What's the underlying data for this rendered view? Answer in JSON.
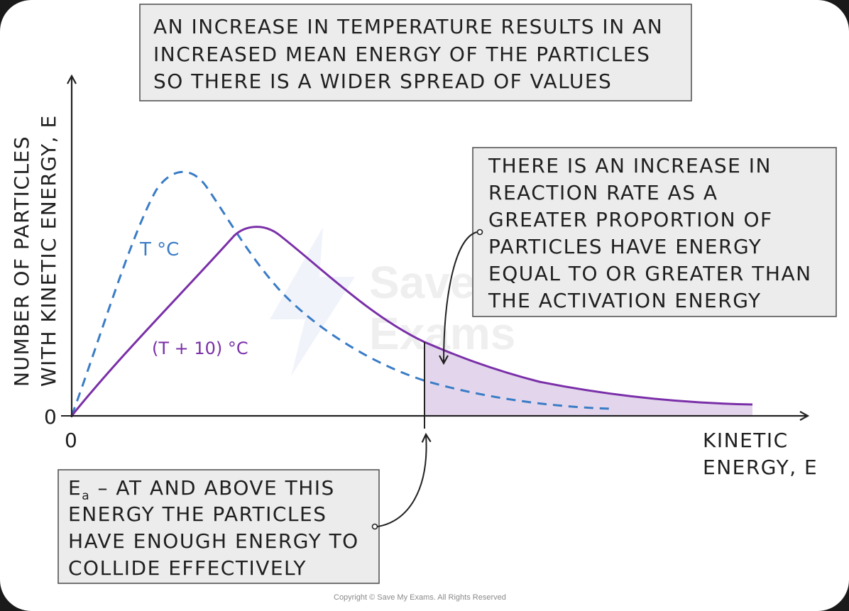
{
  "colors": {
    "hot_curve": "#7a2fa8",
    "cold_curve": "#3a7cc6",
    "shade": "#d9c8e6",
    "box_fill": "#ececec",
    "box_border": "#555555"
  },
  "top_note": {
    "line1": "AN INCREASE IN TEMPERATURE RESULTS IN AN",
    "line2": "INCREASED MEAN ENERGY OF THE PARTICLES",
    "line3": "SO THERE IS A WIDER SPREAD OF VALUES"
  },
  "right_note": {
    "line1": "THERE IS AN INCREASE IN",
    "line2": "REACTION RATE AS A",
    "line3": "GREATER PROPORTION OF",
    "line4": "PARTICLES HAVE ENERGY",
    "line5": "EQUAL TO OR GREATER THAN",
    "line6": "THE ACTIVATION ENERGY"
  },
  "bottom_note": {
    "symbol": "E",
    "subscript": "a",
    "line1_rest": " – AT AND ABOVE THIS",
    "line2": "ENERGY THE PARTICLES",
    "line3": "HAVE ENOUGH ENERGY TO",
    "line4": "COLLIDE EFFECTIVELY"
  },
  "axes": {
    "y_label_line1": "NUMBER OF PARTICLES",
    "y_label_line2": "WITH KINETIC ENERGY, E",
    "x_label_line1": "KINETIC",
    "x_label_line2": "ENERGY, E",
    "y_zero": "0",
    "x_zero": "0"
  },
  "curves": {
    "cold_label": "T °C",
    "hot_label": "(T + 10) °C"
  },
  "watermark": {
    "line1": "Save My",
    "line2": "Exams"
  },
  "copyright": "Copyright © Save My Exams. All Rights Reserved"
}
